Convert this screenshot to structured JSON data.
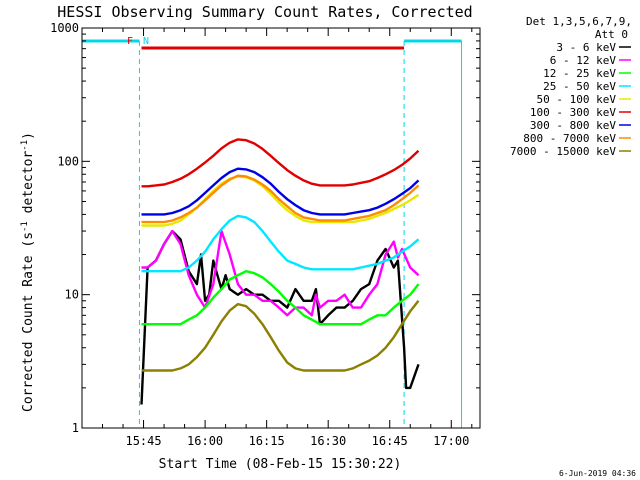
{
  "chart_data": {
    "type": "line",
    "title": "HESSI Observing Summary Count Rates, Corrected",
    "xlabel": "Start Time (08-Feb-15 15:30:22)",
    "ylabel_main": "Corrected Count Rate (s",
    "ylabel_sup1": "-1",
    "ylabel_mid": " detector",
    "ylabel_sup2": "-1",
    "ylabel_end": ")",
    "x_unit": "minutes since 15:30",
    "xlim": [
      0,
      97
    ],
    "ylim": [
      1,
      1000
    ],
    "yscale": "log",
    "x_ticks": [
      {
        "x": 15,
        "label": "15:45"
      },
      {
        "x": 30,
        "label": "16:00"
      },
      {
        "x": 45,
        "label": "16:15"
      },
      {
        "x": 60,
        "label": "16:30"
      },
      {
        "x": 75,
        "label": "16:45"
      },
      {
        "x": 90,
        "label": "17:00"
      }
    ],
    "y_ticks": [
      {
        "y": 1,
        "label": "1"
      },
      {
        "y": 10,
        "label": "10"
      },
      {
        "y": 100,
        "label": "100"
      },
      {
        "y": 1000,
        "label": "1000"
      }
    ],
    "legend_position": "right",
    "legend_header": [
      "Det 1,3,5,6,7,9,",
      "Att 0"
    ],
    "footer_date": "6-Jun-2019 04:36",
    "flags": [
      {
        "label": "F",
        "color": "#e00000"
      },
      {
        "label": "N",
        "color": "#00d8e8"
      }
    ],
    "night_bands": [
      [
        0,
        14
      ],
      [
        78.5,
        92.5
      ]
    ],
    "flare_band": [
      14.5,
      78.5
    ],
    "series": [
      {
        "name": "3 - 6 keV",
        "color": "#000000",
        "x": [
          14.5,
          16,
          18,
          20,
          22,
          24,
          26,
          28,
          29,
          30,
          31,
          32,
          33,
          34,
          35,
          36,
          38,
          40,
          42,
          44,
          46,
          48,
          50,
          52,
          54,
          56,
          57,
          58,
          60,
          62,
          64,
          66,
          68,
          70,
          72,
          74,
          76,
          77,
          78.5,
          79,
          80,
          82
        ],
        "y": [
          1.5,
          16,
          18,
          24,
          30,
          26,
          15,
          12,
          20,
          9,
          10,
          18,
          14,
          11,
          14,
          11,
          10,
          11,
          10,
          10,
          9,
          9,
          8,
          11,
          9,
          9,
          11,
          6,
          7,
          8,
          8,
          9,
          11,
          12,
          18,
          22,
          16,
          18,
          4,
          2,
          2,
          3
        ]
      },
      {
        "name": "6 - 12 keV",
        "color": "#ff00ff",
        "x": [
          14.5,
          16,
          18,
          20,
          22,
          24,
          26,
          28,
          30,
          32,
          34,
          36,
          38,
          40,
          42,
          44,
          46,
          48,
          50,
          52,
          54,
          56,
          57,
          58,
          60,
          62,
          64,
          66,
          68,
          70,
          72,
          74,
          76,
          77,
          78,
          80,
          82
        ],
        "y": [
          16,
          16,
          18,
          24,
          30,
          24,
          14,
          10,
          8,
          12,
          30,
          20,
          12,
          10,
          10,
          9,
          9,
          8,
          7,
          8,
          8,
          7,
          10,
          8,
          9,
          9,
          10,
          8,
          8,
          10,
          12,
          20,
          25,
          19,
          22,
          16,
          14
        ]
      },
      {
        "name": "12 - 25 keV",
        "color": "#00ff00",
        "x": [
          14.5,
          16,
          18,
          20,
          22,
          24,
          26,
          28,
          30,
          32,
          34,
          36,
          38,
          40,
          42,
          44,
          46,
          48,
          50,
          52,
          54,
          56,
          58,
          60,
          62,
          64,
          66,
          68,
          70,
          72,
          74,
          76,
          78,
          80,
          82
        ],
        "y": [
          6,
          6,
          6,
          6,
          6,
          6,
          6.5,
          7,
          8,
          9.5,
          11,
          13,
          14,
          15,
          14.5,
          13.5,
          12,
          10.5,
          9,
          8,
          7,
          6.5,
          6,
          6,
          6,
          6,
          6,
          6,
          6.5,
          7,
          7,
          8,
          9,
          10,
          12
        ]
      },
      {
        "name": "25 - 50 keV",
        "color": "#00e8ff",
        "x": [
          14.5,
          16,
          18,
          20,
          22,
          24,
          26,
          28,
          30,
          32,
          34,
          36,
          38,
          40,
          42,
          44,
          46,
          48,
          50,
          52,
          54,
          56,
          58,
          60,
          62,
          64,
          66,
          68,
          70,
          72,
          74,
          76,
          78,
          80,
          82
        ],
        "y": [
          15,
          15,
          15,
          15,
          15,
          15,
          16,
          18,
          21,
          26,
          31,
          36,
          39,
          38,
          35,
          30,
          25,
          21,
          18,
          17,
          16,
          15.5,
          15.5,
          15.5,
          15.5,
          15.5,
          15.5,
          16,
          16.5,
          17,
          18,
          19,
          21,
          23,
          26
        ]
      },
      {
        "name": "50 - 100 keV",
        "color": "#e8e800",
        "x": [
          14.5,
          16,
          18,
          20,
          22,
          24,
          26,
          28,
          30,
          32,
          34,
          36,
          38,
          40,
          42,
          44,
          46,
          48,
          50,
          52,
          54,
          56,
          58,
          60,
          62,
          64,
          66,
          68,
          70,
          72,
          74,
          76,
          78,
          80,
          82
        ],
        "y": [
          33,
          33,
          33,
          33,
          34,
          36,
          40,
          45,
          52,
          60,
          68,
          74,
          77,
          76,
          72,
          65,
          57,
          49,
          43,
          39,
          36,
          35,
          35,
          35,
          35,
          35,
          35,
          36,
          37,
          39,
          41,
          44,
          47,
          51,
          56
        ]
      },
      {
        "name": "100 - 300 keV",
        "color": "#e00000",
        "x": [
          14.5,
          16,
          18,
          20,
          22,
          24,
          26,
          28,
          30,
          32,
          34,
          36,
          38,
          40,
          42,
          44,
          46,
          48,
          50,
          52,
          54,
          56,
          58,
          60,
          62,
          64,
          66,
          68,
          70,
          72,
          74,
          76,
          78,
          80,
          82
        ],
        "y": [
          65,
          65,
          66,
          67,
          70,
          74,
          80,
          88,
          98,
          110,
          125,
          138,
          146,
          144,
          136,
          124,
          110,
          97,
          86,
          78,
          72,
          68,
          66,
          66,
          66,
          66,
          67,
          69,
          71,
          75,
          80,
          86,
          94,
          105,
          120
        ]
      },
      {
        "name": "300 - 800 keV",
        "color": "#0000e8",
        "x": [
          14.5,
          16,
          18,
          20,
          22,
          24,
          26,
          28,
          30,
          32,
          34,
          36,
          38,
          40,
          42,
          44,
          46,
          48,
          50,
          52,
          54,
          56,
          58,
          60,
          62,
          64,
          66,
          68,
          70,
          72,
          74,
          76,
          78,
          80,
          82
        ],
        "y": [
          40,
          40,
          40,
          40,
          41,
          43,
          46,
          51,
          58,
          66,
          75,
          83,
          88,
          87,
          83,
          76,
          68,
          59,
          52,
          47,
          43,
          41,
          40,
          40,
          40,
          40,
          41,
          42,
          43,
          45,
          48,
          52,
          57,
          63,
          72
        ]
      },
      {
        "name": "800 - 7000 keV",
        "color": "#ff8c00",
        "x": [
          14.5,
          16,
          18,
          20,
          22,
          24,
          26,
          28,
          30,
          32,
          34,
          36,
          38,
          40,
          42,
          44,
          46,
          48,
          50,
          52,
          54,
          56,
          58,
          60,
          62,
          64,
          66,
          68,
          70,
          72,
          74,
          76,
          78,
          80,
          82
        ],
        "y": [
          35,
          35,
          35,
          35,
          36,
          38,
          41,
          45,
          51,
          58,
          66,
          73,
          78,
          77,
          73,
          67,
          60,
          52,
          46,
          41,
          38,
          37,
          36,
          36,
          36,
          36,
          37,
          38,
          39,
          41,
          43,
          47,
          52,
          58,
          66
        ]
      },
      {
        "name": "7000 - 15000 keV",
        "color": "#8b8000",
        "x": [
          14.5,
          16,
          18,
          20,
          22,
          24,
          26,
          28,
          30,
          32,
          34,
          36,
          38,
          40,
          42,
          44,
          46,
          48,
          50,
          52,
          54,
          56,
          58,
          60,
          62,
          64,
          66,
          68,
          70,
          72,
          74,
          76,
          78,
          80,
          82
        ],
        "y": [
          2.7,
          2.7,
          2.7,
          2.7,
          2.7,
          2.8,
          3,
          3.4,
          4,
          5,
          6.3,
          7.6,
          8.5,
          8.2,
          7.2,
          6,
          4.8,
          3.8,
          3.1,
          2.8,
          2.7,
          2.7,
          2.7,
          2.7,
          2.7,
          2.7,
          2.8,
          3,
          3.2,
          3.5,
          4,
          4.8,
          6,
          7.5,
          9
        ]
      }
    ]
  }
}
